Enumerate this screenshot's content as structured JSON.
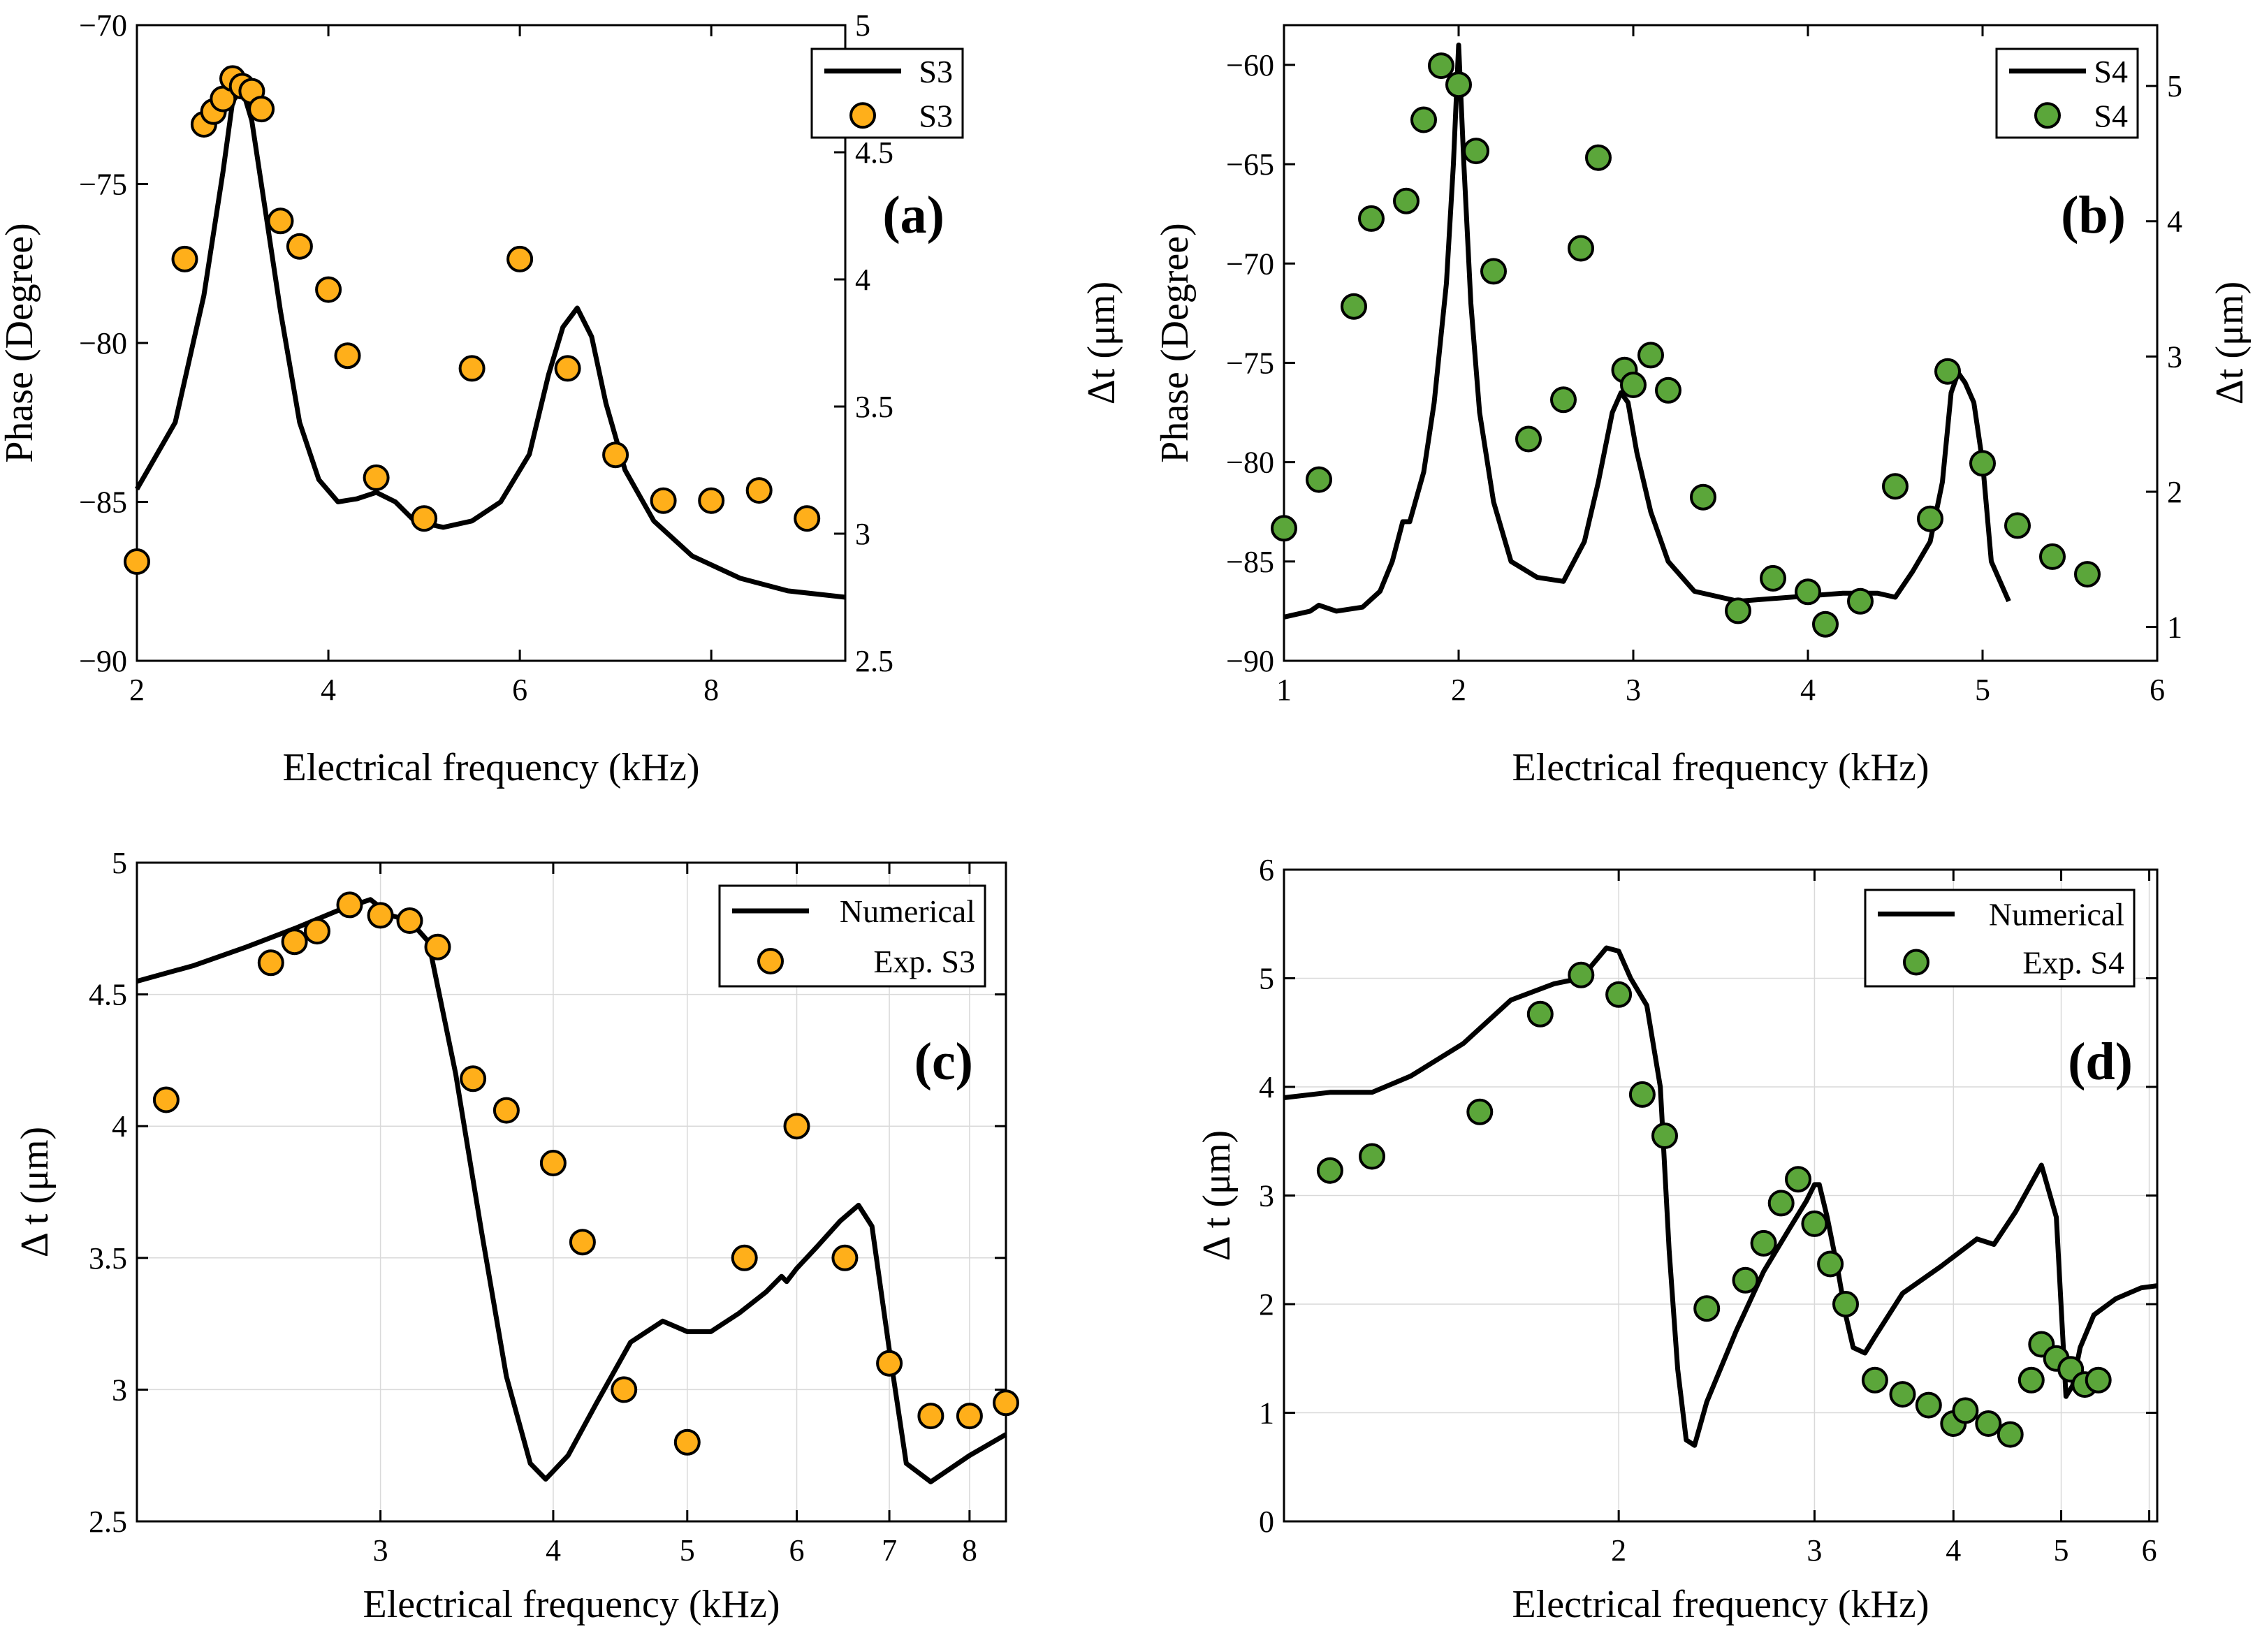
{
  "colors": {
    "s3_marker": "#FFAF1A",
    "s4_marker": "#5BA63A",
    "line": "#000000",
    "grid": "#d9d9d9"
  },
  "chart_data": [
    {
      "id": "a",
      "type": "line",
      "panel_label": "(a)",
      "xlabel": "Electrical frequency (kHz)",
      "ylabel": "Phase (Degree)",
      "ylabel_right": "Δt (μm)",
      "xscale": "linear",
      "xlim": [
        2,
        9.4
      ],
      "ylim": [
        -90,
        -70
      ],
      "ylim_right": [
        2.5,
        5
      ],
      "xticks": [
        2,
        4,
        6,
        8
      ],
      "yticks": [
        -90,
        -85,
        -80,
        -75,
        -70
      ],
      "yticks_right": [
        2.5,
        3,
        3.5,
        4,
        4.5,
        5
      ],
      "grid": false,
      "legend": [
        "S3",
        "S3"
      ],
      "legend_position": "top-right",
      "marker_color": "#FFAF1A",
      "line": {
        "name": "S3",
        "axis": "left",
        "x": [
          2.0,
          2.4,
          2.7,
          2.9,
          3.0,
          3.1,
          3.2,
          3.35,
          3.5,
          3.7,
          3.9,
          4.1,
          4.3,
          4.5,
          4.7,
          4.9,
          5.2,
          5.5,
          5.8,
          6.1,
          6.3,
          6.45,
          6.6,
          6.75,
          6.9,
          7.1,
          7.4,
          7.8,
          8.3,
          8.8,
          9.4
        ],
        "y": [
          -84.6,
          -82.5,
          -78.5,
          -74.6,
          -72.4,
          -72.0,
          -73.0,
          -76.0,
          -79.0,
          -82.5,
          -84.3,
          -85.0,
          -84.9,
          -84.7,
          -85.0,
          -85.6,
          -85.8,
          -85.6,
          -85.0,
          -83.5,
          -81.0,
          -79.5,
          -78.9,
          -79.8,
          -81.9,
          -84.0,
          -85.6,
          -86.7,
          -87.4,
          -87.8,
          -88.0
        ]
      },
      "points": {
        "name": "S3",
        "axis": "right",
        "x": [
          2.0,
          2.5,
          2.7,
          2.8,
          2.9,
          3.0,
          3.1,
          3.2,
          3.3,
          3.5,
          3.7,
          4.0,
          4.2,
          4.5,
          5.0,
          5.5,
          6.0,
          6.5,
          7.0,
          7.5,
          8.0,
          8.5,
          9.0
        ],
        "y": [
          2.89,
          4.08,
          4.61,
          4.66,
          4.71,
          4.79,
          4.76,
          4.74,
          4.67,
          4.23,
          4.13,
          3.96,
          3.7,
          3.22,
          3.06,
          3.65,
          4.08,
          3.65,
          3.31,
          3.13,
          3.13,
          3.17,
          3.06
        ]
      }
    },
    {
      "id": "b",
      "type": "line",
      "panel_label": "(b)",
      "xlabel": "Electrical frequency (kHz)",
      "ylabel": "Phase (Degree)",
      "ylabel_right": "Δt (μm)",
      "xscale": "linear",
      "xlim": [
        1,
        6
      ],
      "ylim": [
        -90,
        -58
      ],
      "ylim_right": [
        0.75,
        5.45
      ],
      "xticks": [
        1,
        2,
        3,
        4,
        5,
        6
      ],
      "yticks": [
        -90,
        -85,
        -80,
        -75,
        -70,
        -65,
        -60
      ],
      "yticks_right": [
        1,
        2,
        3,
        4,
        5
      ],
      "grid": false,
      "legend": [
        "S4",
        "S4"
      ],
      "legend_position": "top-right",
      "marker_color": "#5BA63A",
      "line": {
        "name": "S4",
        "axis": "left",
        "x": [
          1.0,
          1.15,
          1.2,
          1.3,
          1.45,
          1.55,
          1.62,
          1.68,
          1.72,
          1.8,
          1.86,
          1.93,
          1.97,
          2.0,
          2.03,
          2.07,
          2.12,
          2.2,
          2.3,
          2.45,
          2.6,
          2.72,
          2.8,
          2.88,
          2.93,
          2.97,
          3.02,
          3.1,
          3.2,
          3.35,
          3.6,
          3.9,
          4.2,
          4.4,
          4.5,
          4.6,
          4.7,
          4.77,
          4.82,
          4.86,
          4.9,
          4.95,
          5.0,
          5.05,
          5.15
        ],
        "y": [
          -87.8,
          -87.5,
          -87.2,
          -87.5,
          -87.3,
          -86.5,
          -85.0,
          -83.0,
          -83.0,
          -80.5,
          -77.0,
          -71.0,
          -65.0,
          -59.0,
          -65.0,
          -72.0,
          -77.5,
          -82.0,
          -85.0,
          -85.8,
          -86.0,
          -84.0,
          -81.0,
          -77.5,
          -76.5,
          -77.0,
          -79.5,
          -82.5,
          -85.0,
          -86.5,
          -87.0,
          -86.8,
          -86.6,
          -86.6,
          -86.8,
          -85.5,
          -84.0,
          -81.0,
          -76.5,
          -75.5,
          -76.0,
          -77.0,
          -80.0,
          -85.0,
          -87.0
        ]
      },
      "points": {
        "name": "S4",
        "axis": "right",
        "x": [
          1.0,
          1.2,
          1.4,
          1.5,
          1.7,
          1.8,
          1.9,
          2.0,
          2.1,
          2.2,
          2.4,
          2.6,
          2.7,
          2.8,
          2.95,
          3.0,
          3.1,
          3.2,
          3.4,
          3.6,
          3.8,
          4.0,
          4.1,
          4.3,
          4.5,
          4.7,
          4.8,
          5.0,
          5.2,
          5.4,
          5.6
        ],
        "y": [
          1.73,
          2.09,
          3.37,
          4.02,
          4.15,
          4.75,
          5.15,
          5.01,
          4.52,
          3.63,
          2.39,
          2.68,
          3.8,
          4.47,
          2.9,
          2.79,
          3.01,
          2.75,
          1.96,
          1.12,
          1.36,
          1.26,
          1.02,
          1.19,
          2.04,
          1.8,
          2.89,
          2.21,
          1.75,
          1.52,
          1.39
        ]
      }
    },
    {
      "id": "c",
      "type": "line",
      "panel_label": "(c)",
      "xlabel": "Electrical frequency (kHz)",
      "ylabel": "Δ t (μm)",
      "xscale": "log",
      "xlim": [
        2,
        8.5
      ],
      "ylim": [
        2.5,
        5
      ],
      "xticks": [
        3,
        4,
        5,
        6,
        7,
        8
      ],
      "yticks": [
        2.5,
        3,
        3.5,
        4,
        4.5,
        5
      ],
      "grid": true,
      "legend": [
        "Numerical",
        "Exp. S3"
      ],
      "legend_position": "top-right",
      "marker_color": "#FFAF1A",
      "line": {
        "name": "Numerical",
        "x": [
          2.0,
          2.2,
          2.4,
          2.6,
          2.8,
          2.95,
          3.05,
          3.15,
          3.25,
          3.4,
          3.55,
          3.7,
          3.85,
          3.95,
          4.1,
          4.3,
          4.55,
          4.8,
          5.0,
          5.2,
          5.45,
          5.7,
          5.85,
          5.9,
          6.0,
          6.2,
          6.45,
          6.65,
          6.8,
          7.0,
          7.2,
          7.5,
          8.0,
          8.5
        ],
        "y": [
          4.55,
          4.61,
          4.68,
          4.75,
          4.82,
          4.86,
          4.8,
          4.78,
          4.7,
          4.2,
          3.6,
          3.05,
          2.72,
          2.66,
          2.75,
          2.95,
          3.18,
          3.26,
          3.22,
          3.22,
          3.29,
          3.37,
          3.43,
          3.41,
          3.46,
          3.54,
          3.64,
          3.7,
          3.62,
          3.15,
          2.72,
          2.65,
          2.75,
          2.83
        ]
      },
      "points": {
        "name": "Exp. S3",
        "x": [
          2.1,
          2.5,
          2.6,
          2.7,
          2.85,
          3.0,
          3.15,
          3.3,
          3.5,
          3.7,
          4.0,
          4.2,
          4.5,
          5.0,
          5.5,
          6.0,
          6.5,
          7.0,
          7.5,
          8.0,
          8.5
        ],
        "y": [
          4.1,
          4.62,
          4.7,
          4.74,
          4.84,
          4.8,
          4.78,
          4.68,
          4.18,
          4.06,
          3.86,
          3.56,
          3.0,
          2.8,
          3.5,
          4.0,
          3.5,
          3.1,
          2.9,
          2.9,
          2.95
        ]
      }
    },
    {
      "id": "d",
      "type": "line",
      "panel_label": "(d)",
      "xlabel": "Electrical frequency (kHz)",
      "ylabel": "Δ t (μm)",
      "xscale": "log",
      "xlim": [
        1.0,
        6.1
      ],
      "ylim": [
        0,
        6
      ],
      "xticks": [
        2,
        3,
        4,
        5,
        6
      ],
      "yticks": [
        0,
        1,
        2,
        3,
        4,
        5,
        6
      ],
      "grid": true,
      "legend": [
        "Numerical",
        "Exp. S4"
      ],
      "legend_position": "top-right",
      "marker_color": "#5BA63A",
      "line": {
        "name": "Numerical",
        "x": [
          1.0,
          1.1,
          1.2,
          1.3,
          1.45,
          1.6,
          1.75,
          1.85,
          1.95,
          2.0,
          2.05,
          2.12,
          2.18,
          2.22,
          2.26,
          2.3,
          2.34,
          2.4,
          2.55,
          2.7,
          2.85,
          2.95,
          3.0,
          3.03,
          3.08,
          3.15,
          3.2,
          3.25,
          3.33,
          3.4,
          3.6,
          3.9,
          4.2,
          4.35,
          4.55,
          4.8,
          4.95,
          5.05,
          5.12,
          5.2,
          5.35,
          5.6,
          5.9,
          6.1
        ],
        "y": [
          3.9,
          3.95,
          3.95,
          4.1,
          4.4,
          4.8,
          4.95,
          5.0,
          5.28,
          5.25,
          5.0,
          4.75,
          4.0,
          2.5,
          1.4,
          0.75,
          0.7,
          1.1,
          1.75,
          2.3,
          2.7,
          2.95,
          3.1,
          3.1,
          2.8,
          2.3,
          1.9,
          1.6,
          1.55,
          1.7,
          2.1,
          2.35,
          2.6,
          2.55,
          2.85,
          3.28,
          2.8,
          1.15,
          1.25,
          1.6,
          1.9,
          2.05,
          2.15,
          2.17
        ]
      },
      "points": {
        "name": "Exp. S4",
        "x": [
          1.1,
          1.2,
          1.5,
          1.7,
          1.85,
          2.0,
          2.1,
          2.2,
          2.4,
          2.6,
          2.7,
          2.8,
          2.9,
          3.0,
          3.1,
          3.2,
          3.4,
          3.6,
          3.8,
          4.0,
          4.1,
          4.3,
          4.5,
          4.7,
          4.8,
          4.95,
          5.1,
          5.25,
          5.4
        ],
        "y": [
          3.23,
          3.36,
          3.77,
          4.67,
          5.03,
          4.85,
          3.93,
          3.55,
          1.96,
          2.22,
          2.56,
          2.93,
          3.15,
          2.74,
          2.37,
          2.0,
          1.3,
          1.17,
          1.07,
          0.9,
          1.02,
          0.9,
          0.8,
          1.3,
          1.63,
          1.5,
          1.4,
          1.26,
          1.3
        ]
      }
    }
  ]
}
